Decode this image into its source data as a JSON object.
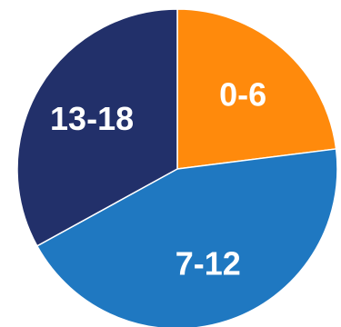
{
  "chart_data": {
    "type": "pie",
    "slices": [
      {
        "label": "0-6",
        "value": 23,
        "color": "#FF8A0C"
      },
      {
        "label": "7-12",
        "value": 44,
        "color": "#1F78C1"
      },
      {
        "label": "13-18",
        "value": 33,
        "color": "#22306A"
      }
    ],
    "start_angle_deg": 0,
    "direction": "clockwise",
    "legend": "none",
    "labels_inside": true
  }
}
